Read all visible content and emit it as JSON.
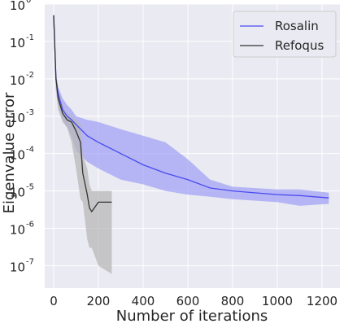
{
  "chart_data": {
    "type": "line",
    "xlabel": "Number of iterations",
    "ylabel": "Eigenvalue error",
    "xlim": [
      -40,
      1280
    ],
    "ylim_exp": [
      -7.6,
      0
    ],
    "yscale": "log",
    "grid": true,
    "legend_position": "top-right",
    "x_ticks": [
      {
        "value": 0,
        "label": "0"
      },
      {
        "value": 200,
        "label": "200"
      },
      {
        "value": 400,
        "label": "400"
      },
      {
        "value": 600,
        "label": "600"
      },
      {
        "value": 800,
        "label": "800"
      },
      {
        "value": 1000,
        "label": "1000"
      },
      {
        "value": 1200,
        "label": "1200"
      }
    ],
    "y_ticks": [
      {
        "exp": 0,
        "base": "10",
        "sup": "0"
      },
      {
        "exp": -1,
        "base": "10",
        "sup": "-1"
      },
      {
        "exp": -2,
        "base": "10",
        "sup": "-2"
      },
      {
        "exp": -3,
        "base": "10",
        "sup": "-3"
      },
      {
        "exp": -4,
        "base": "10",
        "sup": "-4"
      },
      {
        "exp": -5,
        "base": "10",
        "sup": "-5"
      },
      {
        "exp": -6,
        "base": "10",
        "sup": "-6"
      },
      {
        "exp": -7,
        "base": "10",
        "sup": "-7"
      }
    ],
    "series": [
      {
        "name": "Rosalin",
        "color": "#4a4af0",
        "band_color": "#a3a3f5",
        "x": [
          0,
          10,
          20,
          40,
          60,
          80,
          100,
          150,
          200,
          300,
          400,
          500,
          600,
          700,
          800,
          1000,
          1100,
          1230
        ],
        "y": [
          0.5,
          0.01,
          0.004,
          0.0015,
          0.001,
          0.0008,
          0.0006,
          0.0003,
          0.0002,
          0.0001,
          5e-05,
          3e-05,
          2e-05,
          1.2e-05,
          1e-05,
          8e-06,
          7.5e-06,
          6.5e-06
        ],
        "y_low": [
          0.3,
          0.005,
          0.002,
          0.0008,
          0.0005,
          0.0003,
          0.00012,
          6e-05,
          4e-05,
          2e-05,
          1.5e-05,
          1e-05,
          8e-06,
          7e-06,
          6e-06,
          5e-06,
          4e-06,
          4.5e-06
        ],
        "y_high": [
          0.6,
          0.015,
          0.006,
          0.003,
          0.002,
          0.0015,
          0.001,
          0.0008,
          0.0007,
          0.00045,
          0.0003,
          0.0002,
          7e-05,
          2e-05,
          1.3e-05,
          1.1e-05,
          1.1e-05,
          9e-06
        ]
      },
      {
        "name": "Refoqus",
        "color": "#333333",
        "band_color": "#b8b8b8",
        "x": [
          0,
          10,
          20,
          40,
          60,
          80,
          100,
          120,
          130,
          150,
          160,
          170,
          200,
          260
        ],
        "y": [
          0.5,
          0.01,
          0.003,
          0.0012,
          0.0008,
          0.0007,
          0.0004,
          0.0002,
          3e-05,
          8e-06,
          3.5e-06,
          2.8e-06,
          5e-06,
          5e-06
        ],
        "y_low": [
          0.3,
          0.005,
          0.0015,
          0.0007,
          0.0005,
          0.0002,
          4e-05,
          6e-06,
          5e-06,
          5e-07,
          3e-07,
          3e-07,
          1e-07,
          6e-08
        ],
        "y_high": [
          0.6,
          0.015,
          0.005,
          0.002,
          0.0012,
          0.001,
          0.0008,
          0.0006,
          9e-05,
          4e-05,
          1.5e-05,
          1e-05,
          1e-05,
          1e-05
        ]
      }
    ]
  }
}
